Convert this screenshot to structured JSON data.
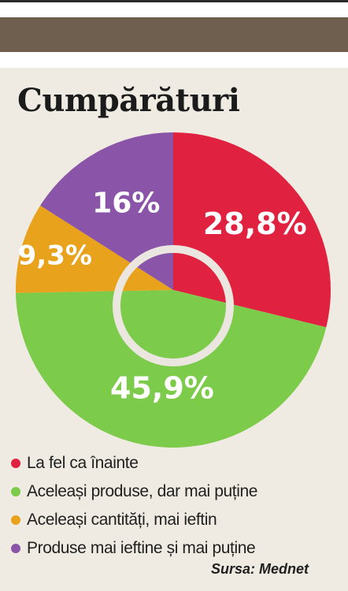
{
  "chart_data": {
    "type": "pie",
    "title": "Cumpărături",
    "categories": [
      "La fel ca înainte",
      "Aceleași produse, dar mai puține",
      "Aceleași cantități, mai ieftin",
      "Produse mai ieftine și mai puține"
    ],
    "values": [
      28.8,
      45.9,
      9.3,
      16
    ],
    "value_labels": [
      "28,8%",
      "45,9%",
      "9,3%",
      "16%"
    ],
    "colors": [
      "#e0213f",
      "#7ccb4a",
      "#e9a21b",
      "#8a55a8"
    ],
    "legend_position": "bottom-left",
    "source": "Sursa: Mednet"
  }
}
